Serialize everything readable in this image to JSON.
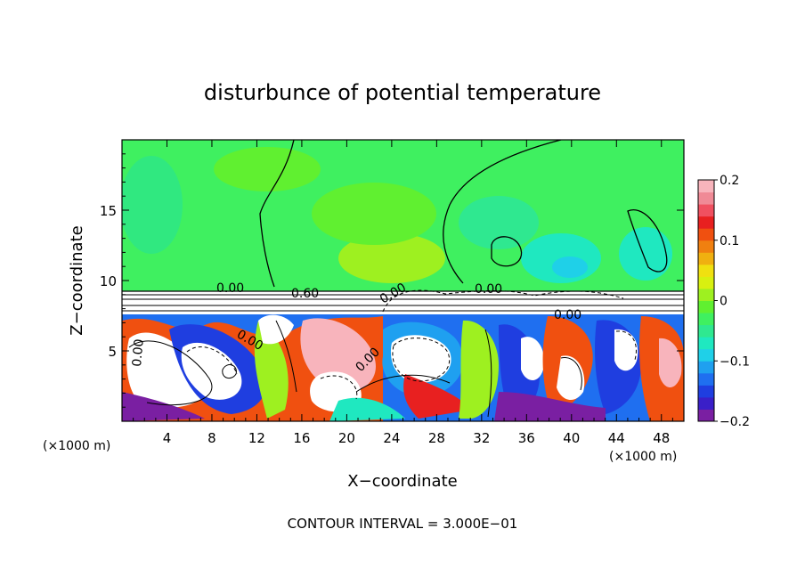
{
  "chart_data": {
    "type": "heatmap",
    "title": "disturbunce of potential temperature",
    "xlabel": "X−coordinate",
    "ylabel": "Z−coordinate",
    "x_unit_left": "(×1000 m)",
    "x_unit_right": "(×1000 m)",
    "footer": "CONTOUR INTERVAL = 3.000E−01",
    "xlim": [
      0,
      50
    ],
    "ylim": [
      0,
      20
    ],
    "x_ticks": [
      4,
      8,
      12,
      16,
      20,
      24,
      28,
      32,
      36,
      40,
      44,
      48
    ],
    "x_tick_labels": [
      "4",
      "8",
      "12",
      "16",
      "20",
      "24",
      "28",
      "32",
      "36",
      "40",
      "44",
      "48"
    ],
    "y_ticks": [
      5,
      10,
      15
    ],
    "y_tick_labels": [
      "5",
      "10",
      "15"
    ],
    "colorbar": {
      "min": -0.2,
      "max": 0.2,
      "ticks": [
        0.2,
        0.1,
        0,
        -0.1,
        -0.2
      ],
      "tick_labels": [
        "0.2",
        "0.1",
        "0",
        "−0.1",
        "−0.2"
      ],
      "colors": [
        "#7a1fa2",
        "#3a1fc8",
        "#1f3ee0",
        "#1f6ff0",
        "#1fa0f0",
        "#1fd0e8",
        "#1fe8c0",
        "#2fe890",
        "#3ff060",
        "#60f030",
        "#9ef020",
        "#d8f010",
        "#f0e010",
        "#f0b010",
        "#f08010",
        "#f05010",
        "#e82020",
        "#f05060",
        "#f08a96",
        "#f8b4bc"
      ]
    },
    "contour_labels": [
      "0.00",
      "0.60",
      "0.00",
      "0.00",
      "0.00",
      "0.00",
      "0.00",
      "0.00"
    ]
  }
}
